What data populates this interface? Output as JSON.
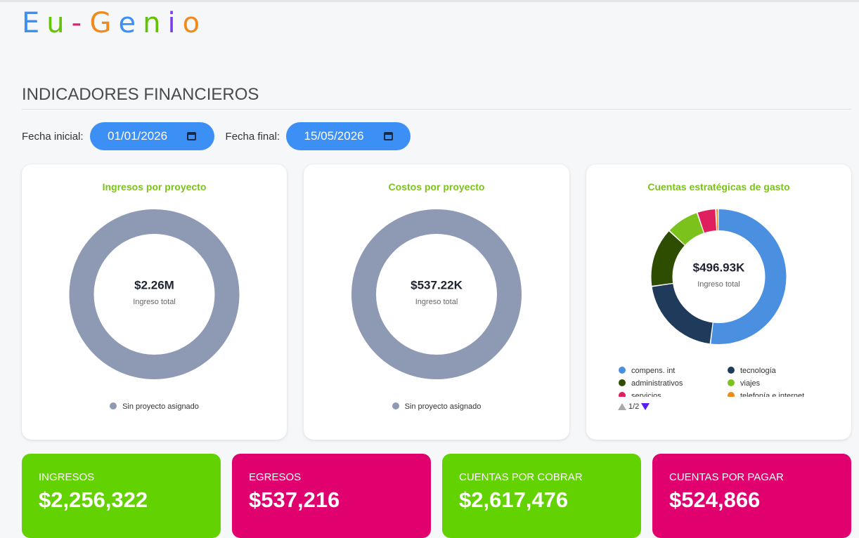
{
  "header": {
    "logo": "Eu-Genio",
    "title": "INDICADORES FINANCIEROS"
  },
  "filters": [
    {
      "label": "Fecha inicial:",
      "value": "01/01/2026"
    },
    {
      "label": "Fecha final:",
      "value": "15/05/2026"
    }
  ],
  "charts": [
    {
      "type": "donut",
      "title": "Ingresos por proyecto",
      "center_value": "$2.26M",
      "center_label": "Ingreso total",
      "segments": [
        {
          "name": "Sin proyecto asignado",
          "color": "#8e99b3",
          "value": 2256322
        }
      ]
    },
    {
      "type": "donut",
      "title": "Costos por proyecto",
      "center_value": "$537.22K",
      "center_label": "Ingreso total",
      "segments": [
        {
          "name": "Sin proyecto asignado",
          "color": "#8e99b3",
          "value": 537216
        }
      ]
    },
    {
      "type": "donut",
      "title": "Cuentas estratégicas de gasto",
      "center_value": "$496.93K",
      "center_label": "Ingreso total",
      "legend_page": "1/2",
      "segments": [
        {
          "name": "compens. int",
          "color": "#4a8fe0",
          "value": 257000
        },
        {
          "name": "tecnología",
          "color": "#1f3a5a",
          "value": 102000
        },
        {
          "name": "administrativos",
          "color": "#2f4d00",
          "value": 70000
        },
        {
          "name": "viajes",
          "color": "#7cc21d",
          "value": 39000
        },
        {
          "name": "servicios",
          "color": "#e0205e",
          "value": 22000
        },
        {
          "name": "telefonía e internet",
          "color": "#f08a1c",
          "value": 3000
        }
      ]
    }
  ],
  "kpis": [
    {
      "label": "INGRESOS",
      "value": "$2,256,322"
    },
    {
      "label": "EGRESOS",
      "value": "$537,216"
    },
    {
      "label": "CUENTAS POR COBRAR",
      "value": "$2,617,476"
    },
    {
      "label": "CUENTAS POR PAGAR",
      "value": "$524,866"
    }
  ]
}
